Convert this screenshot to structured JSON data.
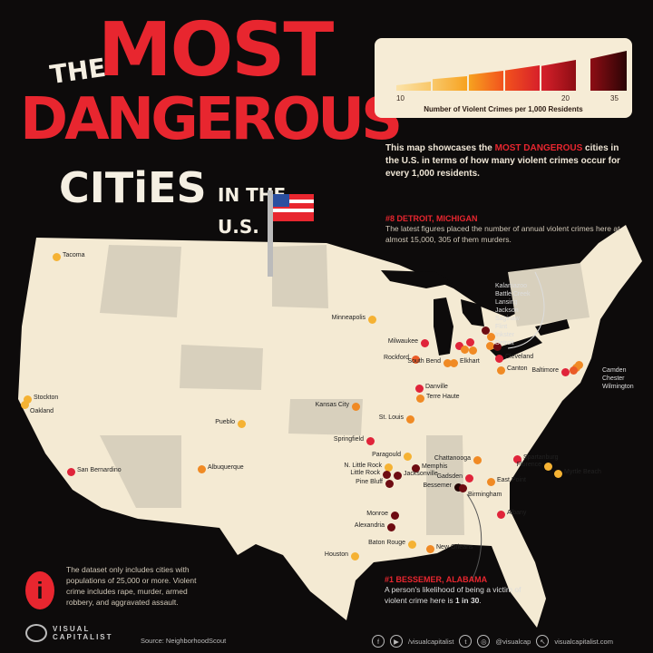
{
  "title": {
    "the": "THE",
    "most": "MOST",
    "dangerous": "DANGEROUS",
    "cities": "CITiES",
    "in_the": "IN THE",
    "us": "U.S."
  },
  "legend": {
    "ticks": [
      "10",
      "20",
      "35"
    ],
    "caption": "Number of Violent Crimes per 1,000 Residents",
    "colors": [
      "#f9c86a",
      "#f7a21f",
      "#f2521d",
      "#d7202a",
      "#8e0d14",
      "#2b0405"
    ]
  },
  "intro": {
    "pre": "This map showcases the ",
    "highlight": "MOST DANGEROUS",
    "post": " cities in the U.S. in terms of how many violent crimes occur for every 1,000 residents."
  },
  "callout_detroit": {
    "title": "#8 DETROIT, MICHIGAN",
    "text": "The latest figures placed the number of annual violent crimes here at almost 15,000, 305 of them murders."
  },
  "callout_bessemer": {
    "title": "#1 BESSEMER, ALABAMA",
    "text_pre": "A person's likelihood of being a victim of violent crime here is ",
    "text_bold": "1 in 30",
    "text_post": "."
  },
  "note": {
    "icon": "info-icon",
    "text": "The dataset only includes cities with populations of 25,000 or more. Violent crime includes rape, murder, armed robbery, and aggravated assault."
  },
  "footer": {
    "brand_line1": "VISUAL",
    "brand_line2": "CAPITALIST",
    "source": "Source: NeighborhoodScout",
    "social_handle1": "/visualcapitalist",
    "social_handle2": "@visualcap",
    "website": "visualcapitalist.com"
  },
  "cities": [
    {
      "name": "Tacoma",
      "level": "yellow"
    },
    {
      "name": "Stockton",
      "level": "yellow"
    },
    {
      "name": "Oakland",
      "level": "yellow"
    },
    {
      "name": "San Bernardino",
      "level": "red"
    },
    {
      "name": "Minneapolis",
      "level": "yellow"
    },
    {
      "name": "Milwaukee",
      "level": "red"
    },
    {
      "name": "Rockford",
      "level": "orange-red"
    },
    {
      "name": "South Bend",
      "level": "orange"
    },
    {
      "name": "Elkhart",
      "level": "orange"
    },
    {
      "name": "Kalamazoo",
      "level": "red"
    },
    {
      "name": "Battle Creek",
      "level": "orange"
    },
    {
      "name": "Lansing",
      "level": "red"
    },
    {
      "name": "Jackson",
      "level": "orange"
    },
    {
      "name": "Saginaw",
      "level": "dark"
    },
    {
      "name": "Flint",
      "level": "orange"
    },
    {
      "name": "Inkster",
      "level": "orange"
    },
    {
      "name": "Detroit",
      "level": "dark"
    },
    {
      "name": "Cleveland",
      "level": "red"
    },
    {
      "name": "Canton",
      "level": "orange"
    },
    {
      "name": "Baltimore",
      "level": "red"
    },
    {
      "name": "Camden",
      "level": "orange"
    },
    {
      "name": "Chester",
      "level": "orange"
    },
    {
      "name": "Wilmington",
      "level": "orange-red"
    },
    {
      "name": "Danville",
      "level": "red"
    },
    {
      "name": "Terre Haute",
      "level": "orange"
    },
    {
      "name": "Kansas City",
      "level": "orange"
    },
    {
      "name": "St. Louis",
      "level": "orange"
    },
    {
      "name": "Pueblo",
      "level": "yellow"
    },
    {
      "name": "Springfield",
      "level": "red"
    },
    {
      "name": "Albuquerque",
      "level": "orange"
    },
    {
      "name": "Paragould",
      "level": "yellow"
    },
    {
      "name": "N. Little Rock",
      "level": "yellow"
    },
    {
      "name": "Little Rock",
      "level": "dark"
    },
    {
      "name": "Pine Bluff",
      "level": "dark"
    },
    {
      "name": "Memphis",
      "level": "dark"
    },
    {
      "name": "Jacksonville",
      "level": "dark"
    },
    {
      "name": "Chattanooga",
      "level": "orange"
    },
    {
      "name": "Gadsden",
      "level": "red"
    },
    {
      "name": "Bessemer",
      "level": "black"
    },
    {
      "name": "Birmingham",
      "level": "dark"
    },
    {
      "name": "East Point",
      "level": "orange"
    },
    {
      "name": "Spartanburg",
      "level": "red"
    },
    {
      "name": "Florence",
      "level": "yellow"
    },
    {
      "name": "Myrtle Beach",
      "level": "yellow"
    },
    {
      "name": "Albany",
      "level": "red"
    },
    {
      "name": "Monroe",
      "level": "dark"
    },
    {
      "name": "Alexandria",
      "level": "dark"
    },
    {
      "name": "Baton Rouge",
      "level": "yellow"
    },
    {
      "name": "New Orleans",
      "level": "orange"
    },
    {
      "name": "Houston",
      "level": "yellow"
    }
  ],
  "level_colors": {
    "yellow": "#f5b233",
    "orange": "#f08a24",
    "orange-red": "#ea5a26",
    "red": "#e0243a",
    "dark": "#6e0c12",
    "black": "#220404"
  }
}
